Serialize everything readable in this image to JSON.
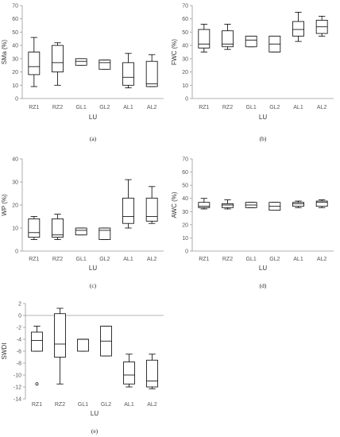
{
  "chart_data": [
    {
      "type": "box",
      "panel_label": "(a)",
      "xlabel": "LU",
      "ylabel": "SMa (%)",
      "ylim": [
        0,
        70
      ],
      "yticks": [
        "0",
        "10",
        "20",
        "30",
        "40",
        "50",
        "60",
        "70"
      ],
      "categories": [
        "RZ1",
        "RZ2",
        "GL1",
        "GL2",
        "AL1",
        "AL2"
      ],
      "boxes": [
        {
          "min": 9,
          "q1": 18,
          "median": 24,
          "q3": 35,
          "max": 46
        },
        {
          "min": 10,
          "q1": 20,
          "median": 27,
          "q3": 40,
          "max": 42
        },
        {
          "min": 25,
          "q1": 25,
          "median": 28,
          "q3": 30,
          "max": 30
        },
        {
          "min": 22,
          "q1": 22,
          "median": 27,
          "q3": 29,
          "max": 29
        },
        {
          "min": 8,
          "q1": 10,
          "median": 16,
          "q3": 27,
          "max": 34
        },
        {
          "min": 9,
          "q1": 9,
          "median": 11,
          "q3": 28,
          "max": 33
        }
      ]
    },
    {
      "type": "box",
      "panel_label": "(b)",
      "xlabel": "LU",
      "ylabel": "FWC (%)",
      "ylim": [
        0,
        70
      ],
      "yticks": [
        "0",
        "10",
        "20",
        "30",
        "40",
        "50",
        "60",
        "70"
      ],
      "categories": [
        "RZ1",
        "RZ2",
        "GL1",
        "GL2",
        "AL1",
        "AL2"
      ],
      "boxes": [
        {
          "min": 35,
          "q1": 38,
          "median": 41,
          "q3": 52,
          "max": 56
        },
        {
          "min": 37,
          "q1": 39,
          "median": 41,
          "q3": 51,
          "max": 56
        },
        {
          "min": 39,
          "q1": 39,
          "median": 44,
          "q3": 47,
          "max": 47
        },
        {
          "min": 35,
          "q1": 35,
          "median": 41,
          "q3": 47,
          "max": 47
        },
        {
          "min": 43,
          "q1": 47,
          "median": 52,
          "q3": 58,
          "max": 65
        },
        {
          "min": 47,
          "q1": 49,
          "median": 54,
          "q3": 59,
          "max": 62
        }
      ]
    },
    {
      "type": "box",
      "panel_label": "(c)",
      "xlabel": "LU",
      "ylabel": "WP (%)",
      "ylim": [
        0,
        40
      ],
      "yticks": [
        "0",
        "10",
        "20",
        "30",
        "40"
      ],
      "categories": [
        "RZ1",
        "RZ2",
        "GL1",
        "GL2",
        "AL1",
        "AL2"
      ],
      "boxes": [
        {
          "min": 5,
          "q1": 6,
          "median": 8,
          "q3": 14,
          "max": 15
        },
        {
          "min": 5,
          "q1": 6,
          "median": 7,
          "q3": 14,
          "max": 16
        },
        {
          "min": 7,
          "q1": 7,
          "median": 9,
          "q3": 10,
          "max": 10
        },
        {
          "min": 5,
          "q1": 5,
          "median": 9,
          "q3": 10,
          "max": 10
        },
        {
          "min": 10,
          "q1": 12,
          "median": 15,
          "q3": 23,
          "max": 31
        },
        {
          "min": 12,
          "q1": 13,
          "median": 15,
          "q3": 23,
          "max": 28
        }
      ]
    },
    {
      "type": "box",
      "panel_label": "(d)",
      "xlabel": "LU",
      "ylabel": "AWC (%)",
      "ylim": [
        0,
        70
      ],
      "yticks": [
        "0",
        "10",
        "20",
        "30",
        "40",
        "50",
        "60",
        "70"
      ],
      "categories": [
        "RZ1",
        "RZ2",
        "GL1",
        "GL2",
        "AL1",
        "AL2"
      ],
      "boxes": [
        {
          "min": 32,
          "q1": 33,
          "median": 34,
          "q3": 37,
          "max": 40
        },
        {
          "min": 32,
          "q1": 33,
          "median": 35,
          "q3": 36,
          "max": 39
        },
        {
          "min": 33,
          "q1": 33,
          "median": 35,
          "q3": 37,
          "max": 37
        },
        {
          "min": 31,
          "q1": 31,
          "median": 34,
          "q3": 37,
          "max": 37
        },
        {
          "min": 33,
          "q1": 34,
          "median": 36,
          "q3": 37,
          "max": 38
        },
        {
          "min": 33,
          "q1": 34,
          "median": 37,
          "q3": 38,
          "max": 39
        }
      ]
    },
    {
      "type": "box",
      "panel_label": "(e)",
      "xlabel": "LU",
      "ylabel": "SWDI",
      "ylim": [
        -14,
        2
      ],
      "yticks": [
        "2",
        "0",
        "-2",
        "-4",
        "-6",
        "-8",
        "-10",
        "-12",
        "-14"
      ],
      "categories": [
        "RZ1",
        "RZ2",
        "GL1",
        "GL2",
        "AL1",
        "AL2"
      ],
      "boxes": [
        {
          "min": -6,
          "q1": -6,
          "median": -4.2,
          "q3": -2.8,
          "max": -1.8,
          "outliers": [
            -11.5
          ]
        },
        {
          "min": -11.5,
          "q1": -7,
          "median": -4.8,
          "q3": 0.3,
          "max": 1.2
        },
        {
          "min": -6,
          "q1": -6,
          "median": -4,
          "q3": -4,
          "max": -4
        },
        {
          "min": -6.8,
          "q1": -6.8,
          "median": -4.3,
          "q3": -1.8,
          "max": -1.8
        },
        {
          "min": -12,
          "q1": -11.5,
          "median": -10,
          "q3": -7.8,
          "max": -6.5
        },
        {
          "min": -12.3,
          "q1": -12,
          "median": -11,
          "q3": -7.5,
          "max": -6.5
        }
      ]
    }
  ]
}
